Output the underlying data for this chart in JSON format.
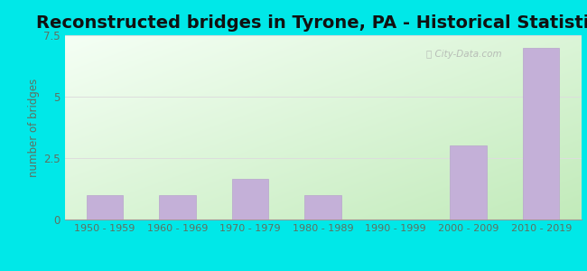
{
  "title": "Reconstructed bridges in Tyrone, PA - Historical Statistics",
  "categories": [
    "1950 - 1959",
    "1960 - 1969",
    "1970 - 1979",
    "1980 - 1989",
    "1990 - 1999",
    "2000 - 2009",
    "2010 - 2019"
  ],
  "values": [
    1,
    1,
    1.67,
    1,
    0,
    3,
    7
  ],
  "bar_color": "#c4b0d8",
  "bar_edgecolor": "#b8a4cc",
  "ylabel": "number of bridges",
  "ylim": [
    0,
    7.5
  ],
  "yticks": [
    0,
    2.5,
    5,
    7.5
  ],
  "bg_outer": "#00e8e8",
  "bg_topleft": "#f0f8f0",
  "bg_bottomright": "#c8e8c0",
  "title_fontsize": 14,
  "axis_label_color": "#607060",
  "tick_label_color": "#607060",
  "grid_color": "#dddddd"
}
